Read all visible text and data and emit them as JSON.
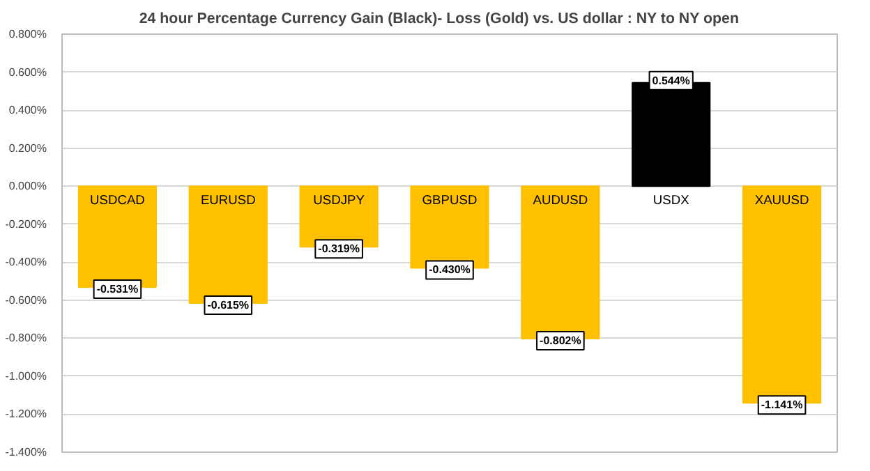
{
  "chart_data": {
    "type": "bar",
    "title": "24 hour Percentage Currency  Gain (Black)- Loss (Gold)  vs. US dollar :  NY  to NY  open",
    "categories": [
      "USDCAD",
      "EURUSD",
      "USDJPY",
      "GBPUSD",
      "AUDUSD",
      "USDX",
      "XAUUSD"
    ],
    "values": [
      -0.531,
      -0.615,
      -0.319,
      -0.43,
      -0.802,
      0.544,
      -1.141
    ],
    "colors": [
      "#ffc000",
      "#ffc000",
      "#ffc000",
      "#ffc000",
      "#ffc000",
      "#000000",
      "#ffc000"
    ],
    "value_labels": [
      "-0.531%",
      "-0.615%",
      "-0.319%",
      "-0.430%",
      "-0.802%",
      "0.544%",
      "-1.141%"
    ],
    "ylim": [
      -1.4,
      0.8
    ],
    "yticks": [
      {
        "value": 0.8,
        "label": "0.800%"
      },
      {
        "value": 0.6,
        "label": "0.600%"
      },
      {
        "value": 0.4,
        "label": "0.400%"
      },
      {
        "value": 0.2,
        "label": "0.200%"
      },
      {
        "value": 0,
        "label": "0.000%"
      },
      {
        "value": -0.2,
        "label": "-0.200%"
      },
      {
        "value": -0.4,
        "label": "-0.400%"
      },
      {
        "value": -0.6,
        "label": "-0.600%"
      },
      {
        "value": -0.8,
        "label": "-0.800%"
      },
      {
        "value": -1.0,
        "label": "-1.000%"
      },
      {
        "value": -1.2,
        "label": "-1.200%"
      },
      {
        "value": -1.4,
        "label": "-1.400%"
      }
    ],
    "grid": "y"
  }
}
